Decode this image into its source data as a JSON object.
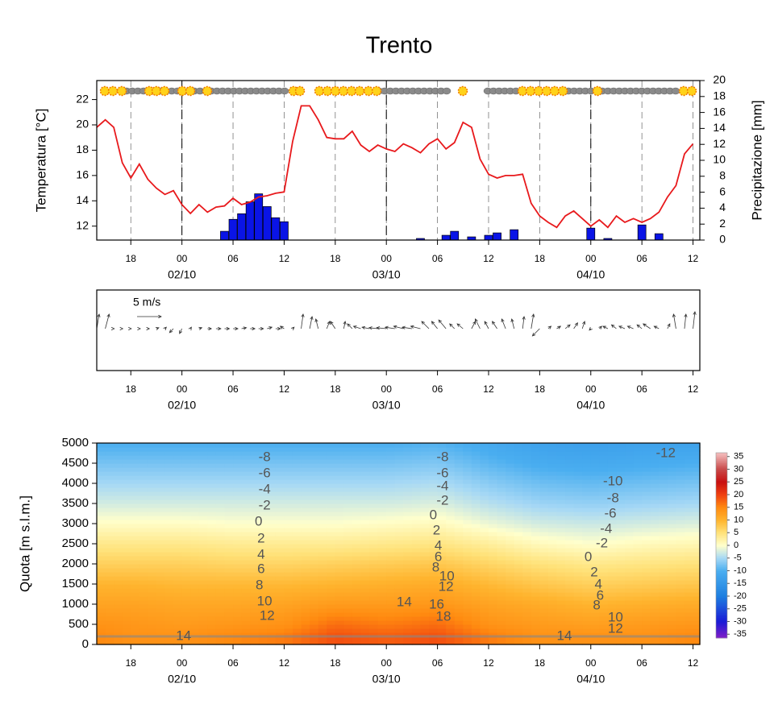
{
  "chart_data": [
    {
      "type": "combo",
      "title": "Trento",
      "ylabel": "Temperatura [°C]",
      "y2label": "Precipitazione [mm]",
      "xlim": [
        0,
        70.8
      ],
      "xticks": [
        {
          "value": 4,
          "label": "18"
        },
        {
          "value": 10,
          "label": "00"
        },
        {
          "value": 16,
          "label": "06"
        },
        {
          "value": 22,
          "label": "12"
        },
        {
          "value": 28,
          "label": "18"
        },
        {
          "value": 34,
          "label": "00"
        },
        {
          "value": 40,
          "label": "06"
        },
        {
          "value": 46,
          "label": "12"
        },
        {
          "value": 52,
          "label": "18"
        },
        {
          "value": 58,
          "label": "00"
        },
        {
          "value": 64,
          "label": "06"
        },
        {
          "value": 70,
          "label": "12"
        }
      ],
      "dates": [
        {
          "value": 10,
          "label": "02/10"
        },
        {
          "value": 34,
          "label": "03/10"
        },
        {
          "value": 58,
          "label": "04/10"
        }
      ],
      "ylim": [
        10.9,
        23.5
      ],
      "yticks": [
        12,
        14,
        16,
        18,
        20,
        22
      ],
      "y2lim": [
        0,
        20
      ],
      "y2ticks": [
        0,
        2,
        4,
        6,
        8,
        10,
        12,
        14,
        16,
        18,
        20
      ],
      "x": [
        0,
        1,
        2,
        3,
        4,
        5,
        6,
        7,
        8,
        9,
        10,
        11,
        12,
        13,
        14,
        15,
        16,
        17,
        18,
        19,
        20,
        21,
        22,
        23,
        24,
        25,
        26,
        27,
        28,
        29,
        30,
        31,
        32,
        33,
        34,
        35,
        36,
        37,
        38,
        39,
        40,
        41,
        42,
        43,
        44,
        45,
        46,
        47,
        48,
        49,
        50,
        51,
        52,
        53,
        54,
        55,
        56,
        57,
        58,
        59,
        60,
        61,
        62,
        63,
        64,
        65,
        66,
        67,
        68,
        69,
        70
      ],
      "temperature": {
        "color": "#e8191c",
        "values": [
          19.8,
          20.4,
          19.8,
          17,
          15.8,
          16.9,
          15.7,
          15,
          14.5,
          14.8,
          13.7,
          13,
          13.7,
          13.1,
          13.5,
          13.6,
          14.2,
          13.7,
          13.9,
          14.3,
          14.4,
          14.6,
          14.7,
          18.7,
          21.5,
          21.5,
          20.4,
          19,
          18.9,
          18.9,
          19.5,
          18.4,
          17.9,
          18.4,
          18.1,
          17.9,
          18.5,
          18.2,
          17.8,
          18.5,
          18.9,
          18.1,
          18.6,
          20.2,
          19.8,
          17.3,
          16.1,
          15.8,
          16,
          16,
          16.1,
          13.8,
          12.8,
          12.3,
          11.9,
          12.8,
          13.2,
          12.6,
          12,
          12.5,
          11.9,
          12.8,
          12.3,
          12.6,
          12.3,
          12.6,
          13.1,
          14.3,
          15.2,
          17.7,
          18.5
        ]
      },
      "precipitation": {
        "color": "#0a14e6",
        "axis": "y2",
        "x": [
          15,
          16,
          17,
          18,
          19,
          20,
          21,
          22,
          38,
          41,
          42,
          44,
          46,
          47,
          49,
          58,
          60,
          64,
          66
        ],
        "values": [
          1.1,
          2.6,
          3.3,
          4.8,
          5.8,
          4.2,
          2.8,
          2.3,
          0.2,
          0.6,
          1.1,
          0.4,
          0.6,
          0.9,
          1.3,
          1.5,
          0.2,
          1.9,
          0.8
        ]
      }
    },
    {
      "type": "quiver",
      "xlim": [
        0,
        70.8
      ],
      "xticks": [
        {
          "value": 4,
          "label": "18"
        },
        {
          "value": 10,
          "label": "00"
        },
        {
          "value": 16,
          "label": "06"
        },
        {
          "value": 22,
          "label": "12"
        },
        {
          "value": 28,
          "label": "18"
        },
        {
          "value": 34,
          "label": "00"
        },
        {
          "value": 40,
          "label": "06"
        },
        {
          "value": 46,
          "label": "12"
        },
        {
          "value": 52,
          "label": "18"
        },
        {
          "value": 58,
          "label": "00"
        },
        {
          "value": 64,
          "label": "06"
        },
        {
          "value": 70,
          "label": "12"
        }
      ],
      "dates": [
        {
          "value": 10,
          "label": "02/10"
        },
        {
          "value": 34,
          "label": "03/10"
        },
        {
          "value": 58,
          "label": "04/10"
        }
      ],
      "reference": {
        "value": 5,
        "label": "5 m/s"
      },
      "x": [
        0,
        1,
        2,
        3,
        4,
        5,
        6,
        7,
        8,
        9,
        10,
        11,
        12,
        13,
        14,
        15,
        16,
        17,
        18,
        19,
        20,
        21,
        22,
        23,
        24,
        25,
        26,
        27,
        28,
        29,
        30,
        31,
        32,
        33,
        34,
        35,
        36,
        37,
        38,
        39,
        40,
        41,
        42,
        43,
        44,
        45,
        46,
        47,
        48,
        49,
        50,
        51,
        52,
        53,
        54,
        55,
        56,
        57,
        58,
        59,
        60,
        61,
        62,
        63,
        64,
        65,
        66,
        67,
        68,
        69,
        70
      ],
      "u": [
        0.5,
        0.8,
        0.1,
        0.1,
        0.1,
        0.2,
        0.3,
        0.5,
        0.3,
        -0.8,
        -0.5,
        0.2,
        0.6,
        0.8,
        1,
        1,
        1,
        1,
        1,
        1,
        1,
        1,
        -0.8,
        0.3,
        0.4,
        0.5,
        -0.5,
        0.6,
        -1,
        0.3,
        -1,
        -1.5,
        -1.5,
        -1.8,
        -2,
        -2,
        -2,
        -2,
        -2,
        -1.5,
        -1.2,
        -1.5,
        -1,
        -1.2,
        0.8,
        -1,
        -0.8,
        -1,
        -0.8,
        -0.5,
        0.3,
        0.5,
        -1.5,
        0.6,
        0.8,
        1,
        0.8,
        0.5,
        -0.3,
        0.5,
        -1,
        -1,
        -1.2,
        -1.2,
        -1,
        -1.5,
        -1,
        0.5,
        -0.5,
        0.3,
        0.4
      ],
      "v": [
        3,
        3,
        0,
        0,
        0,
        0,
        0,
        0.2,
        0.3,
        -0.8,
        -1,
        0.3,
        0.2,
        0,
        0,
        0,
        0,
        0.2,
        0,
        0,
        0.3,
        0,
        0.5,
        0.3,
        3,
        2.5,
        2,
        1.5,
        1.5,
        1.5,
        1,
        0.5,
        0.3,
        0.2,
        0.2,
        0.3,
        0.5,
        0.3,
        0.5,
        1.5,
        1.5,
        1.8,
        1,
        1,
        1.5,
        2,
        1.5,
        1.5,
        2,
        2,
        2.5,
        3,
        -1.5,
        0.5,
        0.5,
        0.8,
        1.2,
        1.5,
        -0.3,
        0.5,
        0.5,
        0.8,
        0.5,
        0.5,
        0.8,
        1,
        0.5,
        1,
        3,
        3,
        3.5
      ]
    },
    {
      "type": "contour",
      "ylabel": "Quota [m s.l.m.]",
      "xlim": [
        0,
        70.8
      ],
      "xticks": [
        {
          "value": 4,
          "label": "18"
        },
        {
          "value": 10,
          "label": "00"
        },
        {
          "value": 16,
          "label": "06"
        },
        {
          "value": 22,
          "label": "12"
        },
        {
          "value": 28,
          "label": "18"
        },
        {
          "value": 34,
          "label": "00"
        },
        {
          "value": 40,
          "label": "06"
        },
        {
          "value": 46,
          "label": "12"
        },
        {
          "value": 52,
          "label": "18"
        },
        {
          "value": 58,
          "label": "00"
        },
        {
          "value": 64,
          "label": "06"
        },
        {
          "value": 70,
          "label": "12"
        }
      ],
      "dates": [
        {
          "value": 10,
          "label": "02/10"
        },
        {
          "value": 34,
          "label": "03/10"
        },
        {
          "value": 58,
          "label": "04/10"
        }
      ],
      "ylim": [
        0,
        5000
      ],
      "yticks": [
        0,
        500,
        1000,
        1500,
        2000,
        2500,
        3000,
        3500,
        4000,
        4500,
        5000
      ],
      "x": [
        0,
        4,
        10,
        16,
        22,
        28,
        34,
        40,
        46,
        52,
        58,
        64,
        70
      ],
      "z": [
        200,
        500,
        1000,
        1500,
        2000,
        2500,
        3000,
        3500,
        4000,
        4500,
        5000
      ],
      "values": [
        [
          15,
          14,
          14,
          15,
          16,
          19,
          18,
          19,
          16,
          14,
          14,
          14,
          15
        ],
        [
          14,
          13.5,
          13,
          13.5,
          14,
          17,
          16,
          17,
          14,
          13,
          12.5,
          13,
          13.5
        ],
        [
          12,
          12,
          11.5,
          11.5,
          12,
          13,
          13,
          13.5,
          12,
          11,
          10,
          10.5,
          11
        ],
        [
          10,
          10,
          9.5,
          9.5,
          9.5,
          10,
          10.5,
          11,
          9.5,
          8,
          7,
          7.5,
          8
        ],
        [
          7,
          7,
          7,
          6.5,
          6.5,
          7,
          7.5,
          8,
          6.5,
          5,
          4,
          4.5,
          5
        ],
        [
          4,
          4,
          4,
          3.5,
          3.5,
          3.5,
          4,
          4.5,
          3,
          1,
          0,
          1,
          1.5
        ],
        [
          0.5,
          0.5,
          0.5,
          0,
          0,
          0,
          0.5,
          1,
          -1,
          -2.5,
          -3,
          -2.5,
          -2
        ],
        [
          -2.5,
          -2.5,
          -2.5,
          -2.5,
          -2.5,
          -2.5,
          -2.5,
          -2,
          -4,
          -5.5,
          -6,
          -5.5,
          -5
        ],
        [
          -5,
          -5,
          -5,
          -5,
          -5,
          -5,
          -5,
          -4.5,
          -6.5,
          -8,
          -8.5,
          -8,
          -7.5
        ],
        [
          -7.5,
          -7.5,
          -7.5,
          -7.5,
          -7.5,
          -7.5,
          -7.5,
          -7,
          -9,
          -10.5,
          -11,
          -10.5,
          -10
        ],
        [
          -10,
          -10,
          -10,
          -10,
          -10,
          -10,
          -10,
          -9.5,
          -11,
          -12.5,
          -13,
          -12.5,
          -12.5
        ]
      ],
      "contour_labels": [
        {
          "value": -8,
          "x": 19.7,
          "y": 4640
        },
        {
          "value": -6,
          "x": 19.7,
          "y": 4240
        },
        {
          "value": -4,
          "x": 19.7,
          "y": 3840
        },
        {
          "value": -2,
          "x": 19.7,
          "y": 3440
        },
        {
          "value": 0,
          "x": 19,
          "y": 3040
        },
        {
          "value": 2,
          "x": 19.3,
          "y": 2620
        },
        {
          "value": 4,
          "x": 19.3,
          "y": 2220
        },
        {
          "value": 6,
          "x": 19.3,
          "y": 1860
        },
        {
          "value": 8,
          "x": 19.1,
          "y": 1460
        },
        {
          "value": 10,
          "x": 19.7,
          "y": 1060
        },
        {
          "value": 12,
          "x": 20,
          "y": 700
        },
        {
          "value": 14,
          "x": 10.2,
          "y": 200
        },
        {
          "value": -8,
          "x": 40.6,
          "y": 4640
        },
        {
          "value": -6,
          "x": 40.6,
          "y": 4240
        },
        {
          "value": -4,
          "x": 40.6,
          "y": 3920
        },
        {
          "value": -2,
          "x": 40.6,
          "y": 3560
        },
        {
          "value": 0,
          "x": 39.5,
          "y": 3200
        },
        {
          "value": 2,
          "x": 39.9,
          "y": 2820
        },
        {
          "value": 4,
          "x": 40.1,
          "y": 2440
        },
        {
          "value": 6,
          "x": 40.1,
          "y": 2160
        },
        {
          "value": 8,
          "x": 39.8,
          "y": 1900
        },
        {
          "value": 10,
          "x": 41.1,
          "y": 1680
        },
        {
          "value": 12,
          "x": 41,
          "y": 1420
        },
        {
          "value": 14,
          "x": 36.1,
          "y": 1040
        },
        {
          "value": 16,
          "x": 39.9,
          "y": 980
        },
        {
          "value": 18,
          "x": 40.7,
          "y": 680
        },
        {
          "value": -12,
          "x": 66.8,
          "y": 4740
        },
        {
          "value": -10,
          "x": 60.6,
          "y": 4040
        },
        {
          "value": -8,
          "x": 60.6,
          "y": 3620
        },
        {
          "value": -6,
          "x": 60.3,
          "y": 3240
        },
        {
          "value": -4,
          "x": 59.8,
          "y": 2860
        },
        {
          "value": -2,
          "x": 59.3,
          "y": 2500
        },
        {
          "value": 0,
          "x": 57.7,
          "y": 2160
        },
        {
          "value": 2,
          "x": 58.4,
          "y": 1780
        },
        {
          "value": 4,
          "x": 58.9,
          "y": 1480
        },
        {
          "value": 6,
          "x": 59.1,
          "y": 1200
        },
        {
          "value": 8,
          "x": 58.7,
          "y": 960
        },
        {
          "value": 10,
          "x": 60.9,
          "y": 660
        },
        {
          "value": 12,
          "x": 60.9,
          "y": 380
        },
        {
          "value": 14,
          "x": 54.9,
          "y": 200
        }
      ],
      "colorbar": {
        "lim": [
          -36.5,
          36.5
        ],
        "ticks": [
          35,
          30,
          25,
          20,
          15,
          10,
          5,
          0,
          -5,
          -10,
          -15,
          -20,
          -25,
          -30,
          -35
        ],
        "levels": [
          -36,
          -30,
          -20,
          -10,
          -5,
          0,
          5,
          10,
          15,
          20,
          25,
          30,
          36
        ],
        "colors": [
          "#7a1ec8",
          "#1a1ad6",
          "#1e7fe0",
          "#4aaef0",
          "#a6d8f5",
          "#ffffcc",
          "#ffe27a",
          "#ffb42e",
          "#ff8a10",
          "#f04010",
          "#c81010",
          "#c84848",
          "#f2b8b8"
        ]
      }
    }
  ]
}
